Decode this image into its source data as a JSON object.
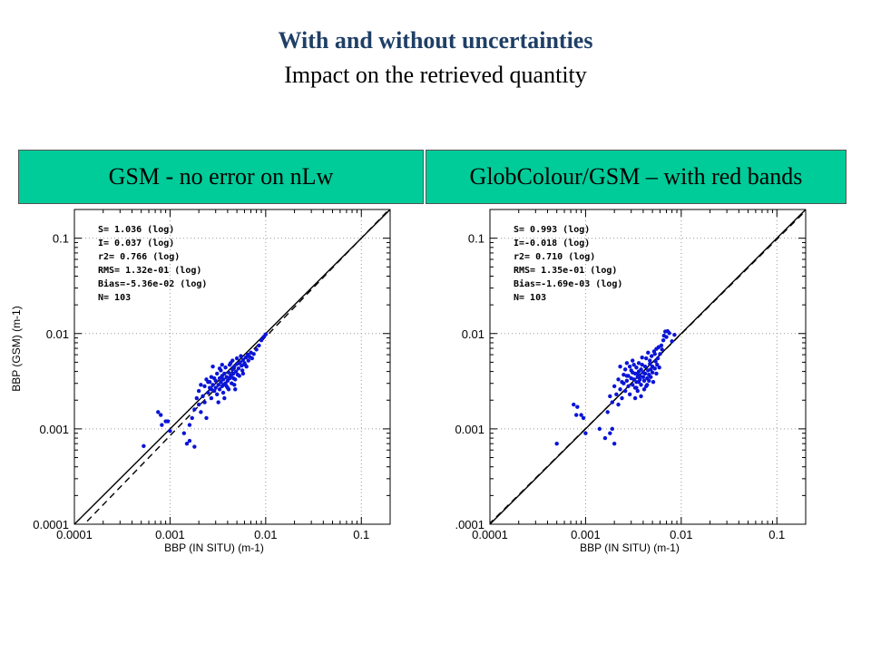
{
  "header": {
    "title": "With and without uncertainties",
    "subtitle": "Impact on the retrieved quantity"
  },
  "colors": {
    "banner": "#00cc99",
    "points": "#0a14d6",
    "title": "#1f3f66"
  },
  "chart_data": [
    {
      "type": "scatter",
      "banner": "GSM - no error on nLw",
      "xlabel": "BBP (IN SITU) (m-1)",
      "ylabel": "BBP (GSM) (m-1)",
      "xscale": "log",
      "yscale": "log",
      "xlim": [
        0.0001,
        0.2
      ],
      "ylim": [
        0.0001,
        0.2
      ],
      "x_ticks": [
        "0.0001",
        "0.001",
        "0.01",
        "0.1"
      ],
      "y_ticks": [
        "0.0001",
        "0.001",
        "0.01",
        "0.1"
      ],
      "grid": true,
      "stats": [
        "S= 1.036 (log)",
        "I= 0.037 (log)",
        "r2= 0.766 (log)",
        "RMS= 1.32e-01 (log)",
        "Bias=-5.36e-02 (log)",
        "N= 103"
      ],
      "lines": [
        {
          "style": "solid",
          "slope": 1.0,
          "intercept": 0.0
        },
        {
          "style": "dashed",
          "slope": 1.036,
          "intercept": 0.037
        }
      ],
      "points": [
        [
          0.00053,
          0.00066
        ],
        [
          0.00075,
          0.0015
        ],
        [
          0.0008,
          0.0014
        ],
        [
          0.00082,
          0.0011
        ],
        [
          0.0009,
          0.0012
        ],
        [
          0.00095,
          0.0012
        ],
        [
          0.001,
          0.00095
        ],
        [
          0.0014,
          0.0009
        ],
        [
          0.0015,
          0.0007
        ],
        [
          0.0016,
          0.00075
        ],
        [
          0.0018,
          0.00065
        ],
        [
          0.0016,
          0.0011
        ],
        [
          0.0017,
          0.0013
        ],
        [
          0.0018,
          0.0016
        ],
        [
          0.0019,
          0.0021
        ],
        [
          0.002,
          0.0018
        ],
        [
          0.002,
          0.0025
        ],
        [
          0.0021,
          0.0015
        ],
        [
          0.0022,
          0.0022
        ],
        [
          0.0023,
          0.0028
        ],
        [
          0.0023,
          0.0019
        ],
        [
          0.0024,
          0.0013
        ],
        [
          0.0025,
          0.0024
        ],
        [
          0.0025,
          0.0031
        ],
        [
          0.0026,
          0.0027
        ],
        [
          0.0027,
          0.0021
        ],
        [
          0.0027,
          0.0035
        ],
        [
          0.0028,
          0.0029
        ],
        [
          0.0028,
          0.0045
        ],
        [
          0.0029,
          0.0025
        ],
        [
          0.003,
          0.0032
        ],
        [
          0.003,
          0.0027
        ],
        [
          0.0031,
          0.0023
        ],
        [
          0.0031,
          0.0038
        ],
        [
          0.0032,
          0.0029
        ],
        [
          0.0033,
          0.0034
        ],
        [
          0.0033,
          0.0026
        ],
        [
          0.0034,
          0.0031
        ],
        [
          0.0034,
          0.0041
        ],
        [
          0.0035,
          0.0028
        ],
        [
          0.0035,
          0.0036
        ],
        [
          0.0036,
          0.0033
        ],
        [
          0.0036,
          0.0024
        ],
        [
          0.0037,
          0.0038
        ],
        [
          0.0038,
          0.003
        ],
        [
          0.0038,
          0.0044
        ],
        [
          0.0039,
          0.0035
        ],
        [
          0.004,
          0.0032
        ],
        [
          0.004,
          0.0027
        ],
        [
          0.0041,
          0.0039
        ],
        [
          0.0042,
          0.0034
        ],
        [
          0.0042,
          0.0047
        ],
        [
          0.0043,
          0.0036
        ],
        [
          0.0044,
          0.003
        ],
        [
          0.0045,
          0.0042
        ],
        [
          0.0045,
          0.0052
        ],
        [
          0.0046,
          0.0038
        ],
        [
          0.0047,
          0.0045
        ],
        [
          0.0048,
          0.0033
        ],
        [
          0.0049,
          0.004
        ],
        [
          0.005,
          0.0048
        ],
        [
          0.005,
          0.0055
        ],
        [
          0.0052,
          0.0043
        ],
        [
          0.0053,
          0.0036
        ],
        [
          0.0054,
          0.005
        ],
        [
          0.0055,
          0.0058
        ],
        [
          0.0056,
          0.0046
        ],
        [
          0.0057,
          0.0041
        ],
        [
          0.0058,
          0.0053
        ],
        [
          0.006,
          0.0049
        ],
        [
          0.0062,
          0.0056
        ],
        [
          0.0063,
          0.0045
        ],
        [
          0.0065,
          0.006
        ],
        [
          0.0066,
          0.0052
        ],
        [
          0.0068,
          0.0057
        ],
        [
          0.007,
          0.0063
        ],
        [
          0.0072,
          0.0055
        ],
        [
          0.0075,
          0.0061
        ],
        [
          0.008,
          0.0068
        ],
        [
          0.0085,
          0.0075
        ],
        [
          0.009,
          0.0085
        ],
        [
          0.0095,
          0.0092
        ],
        [
          0.01,
          0.0098
        ],
        [
          0.0032,
          0.0019
        ],
        [
          0.0037,
          0.0021
        ],
        [
          0.0029,
          0.0034
        ],
        [
          0.0026,
          0.0031
        ],
        [
          0.0041,
          0.0026
        ],
        [
          0.0044,
          0.0037
        ],
        [
          0.0047,
          0.0029
        ],
        [
          0.0021,
          0.0029
        ],
        [
          0.0024,
          0.0033
        ],
        [
          0.0035,
          0.0047
        ],
        [
          0.0039,
          0.0028
        ],
        [
          0.0043,
          0.0049
        ],
        [
          0.0051,
          0.0037
        ],
        [
          0.0048,
          0.0026
        ],
        [
          0.0058,
          0.0038
        ],
        [
          0.0061,
          0.0047
        ],
        [
          0.0033,
          0.0043
        ],
        [
          0.0027,
          0.0026
        ],
        [
          0.0036,
          0.0029
        ],
        [
          0.0046,
          0.0034
        ]
      ]
    },
    {
      "type": "scatter",
      "banner": "GlobColour/GSM – with red bands",
      "xlabel": "BBP (IN SITU) (m-1)",
      "ylabel": "",
      "xscale": "log",
      "yscale": "log",
      "xlim": [
        0.0001,
        0.2
      ],
      "ylim": [
        0.0001,
        0.2
      ],
      "x_ticks": [
        "0.0001",
        "0.001",
        "0.01",
        "0.1"
      ],
      "y_ticks": [
        ".0001",
        "0.001",
        "0.01",
        "0.1"
      ],
      "grid": true,
      "stats": [
        "S= 0.993 (log)",
        "I=-0.018 (log)",
        "r2= 0.710 (log)",
        "RMS= 1.35e-01 (log)",
        "Bias=-1.69e-03 (log)",
        "N= 103"
      ],
      "lines": [
        {
          "style": "solid",
          "slope": 1.0,
          "intercept": 0.0
        },
        {
          "style": "dashed",
          "slope": 0.993,
          "intercept": -0.018
        }
      ],
      "points": [
        [
          0.0005,
          0.0007
        ],
        [
          0.00075,
          0.0018
        ],
        [
          0.0008,
          0.0014
        ],
        [
          0.00082,
          0.0017
        ],
        [
          0.0009,
          0.0014
        ],
        [
          0.00095,
          0.0013
        ],
        [
          0.001,
          0.0009
        ],
        [
          0.0014,
          0.001
        ],
        [
          0.0016,
          0.0008
        ],
        [
          0.0018,
          0.0009
        ],
        [
          0.0019,
          0.001
        ],
        [
          0.002,
          0.0007
        ],
        [
          0.0017,
          0.0015
        ],
        [
          0.0018,
          0.0022
        ],
        [
          0.0019,
          0.0019
        ],
        [
          0.002,
          0.0028
        ],
        [
          0.0021,
          0.0023
        ],
        [
          0.0022,
          0.0018
        ],
        [
          0.0022,
          0.0033
        ],
        [
          0.0023,
          0.0026
        ],
        [
          0.0023,
          0.0045
        ],
        [
          0.0024,
          0.0021
        ],
        [
          0.0025,
          0.003
        ],
        [
          0.0025,
          0.0037
        ],
        [
          0.0026,
          0.0025
        ],
        [
          0.0027,
          0.0032
        ],
        [
          0.0027,
          0.0049
        ],
        [
          0.0028,
          0.0028
        ],
        [
          0.0028,
          0.0036
        ],
        [
          0.0029,
          0.0023
        ],
        [
          0.003,
          0.0034
        ],
        [
          0.003,
          0.0041
        ],
        [
          0.0031,
          0.0029
        ],
        [
          0.0031,
          0.0052
        ],
        [
          0.0032,
          0.0033
        ],
        [
          0.0033,
          0.0038
        ],
        [
          0.0033,
          0.0027
        ],
        [
          0.0034,
          0.0031
        ],
        [
          0.0034,
          0.0044
        ],
        [
          0.0035,
          0.0035
        ],
        [
          0.0035,
          0.0025
        ],
        [
          0.0036,
          0.004
        ],
        [
          0.0036,
          0.0031
        ],
        [
          0.0037,
          0.0036
        ],
        [
          0.0038,
          0.0042
        ],
        [
          0.0038,
          0.0029
        ],
        [
          0.0039,
          0.0047
        ],
        [
          0.004,
          0.0035
        ],
        [
          0.004,
          0.0039
        ],
        [
          0.0041,
          0.0032
        ],
        [
          0.0042,
          0.0045
        ],
        [
          0.0042,
          0.0038
        ],
        [
          0.0043,
          0.0055
        ],
        [
          0.0044,
          0.0034
        ],
        [
          0.0045,
          0.0041
        ],
        [
          0.0045,
          0.0063
        ],
        [
          0.0046,
          0.0037
        ],
        [
          0.0047,
          0.0048
        ],
        [
          0.0048,
          0.0042
        ],
        [
          0.0049,
          0.0058
        ],
        [
          0.005,
          0.0039
        ],
        [
          0.005,
          0.0045
        ],
        [
          0.0052,
          0.0065
        ],
        [
          0.0053,
          0.0043
        ],
        [
          0.0054,
          0.0051
        ],
        [
          0.0055,
          0.0069
        ],
        [
          0.0056,
          0.0047
        ],
        [
          0.0057,
          0.0055
        ],
        [
          0.0058,
          0.0072
        ],
        [
          0.006,
          0.0061
        ],
        [
          0.0062,
          0.0075
        ],
        [
          0.0063,
          0.0068
        ],
        [
          0.0065,
          0.0085
        ],
        [
          0.0066,
          0.0095
        ],
        [
          0.0068,
          0.0105
        ],
        [
          0.007,
          0.0092
        ],
        [
          0.0072,
          0.0106
        ],
        [
          0.0075,
          0.0101
        ],
        [
          0.008,
          0.0083
        ],
        [
          0.0085,
          0.0097
        ],
        [
          0.0038,
          0.0022
        ],
        [
          0.0041,
          0.0026
        ],
        [
          0.0044,
          0.0029
        ],
        [
          0.0029,
          0.0045
        ],
        [
          0.0026,
          0.0042
        ],
        [
          0.0048,
          0.0035
        ],
        [
          0.0051,
          0.0031
        ],
        [
          0.0033,
          0.0021
        ],
        [
          0.0036,
          0.0049
        ],
        [
          0.0039,
          0.0056
        ],
        [
          0.0043,
          0.0028
        ],
        [
          0.0046,
          0.0032
        ],
        [
          0.0031,
          0.0039
        ],
        [
          0.0027,
          0.0036
        ],
        [
          0.0034,
          0.0027
        ],
        [
          0.0037,
          0.0033
        ],
        [
          0.0055,
          0.0038
        ],
        [
          0.0059,
          0.0044
        ],
        [
          0.0032,
          0.0047
        ],
        [
          0.0024,
          0.0031
        ],
        [
          0.0047,
          0.0052
        ],
        [
          0.0053,
          0.0061
        ],
        [
          0.0035,
          0.0038
        ]
      ]
    }
  ]
}
